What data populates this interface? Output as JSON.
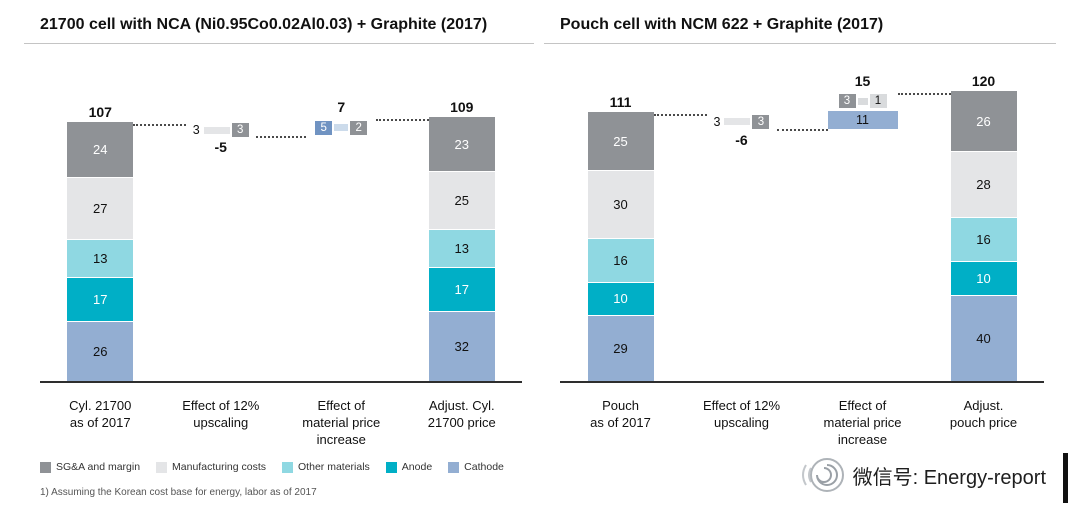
{
  "colors": {
    "sga": "#8f9296",
    "mfg": "#e4e5e7",
    "other": "#8fd8e2",
    "anode": "#00afc6",
    "cathode": "#93aed2",
    "deltablue": "#7093c2",
    "stripblue": "#ccdbeb",
    "lightbox": "#d9dbdd",
    "axis": "#2e2e2e"
  },
  "dark_text_keys": [
    "mfg",
    "other",
    "cathode",
    "lightbox",
    "stripblue"
  ],
  "legend": [
    {
      "key": "sga",
      "label": "SG&A and margin"
    },
    {
      "key": "mfg",
      "label": "Manufacturing costs"
    },
    {
      "key": "other",
      "label": "Other materials"
    },
    {
      "key": "anode",
      "label": "Anode"
    },
    {
      "key": "cathode",
      "label": "Cathode"
    }
  ],
  "footnote": "1) Assuming the Korean cost base for energy, labor as of 2017",
  "footer": {
    "wechat": "微信号: Energy-report"
  },
  "chart_data": [
    {
      "type": "bar",
      "subtype": "stacked-waterfall",
      "title": "21700 cell with NCA (Ni0.95Co0.02Al0.03) + Graphite (2017)",
      "ylim": [
        0,
        130
      ],
      "grid": false,
      "columns": [
        {
          "kind": "stack",
          "label_lines": [
            "Cyl. 21700",
            "as of 2017"
          ],
          "total": 107,
          "segments": [
            {
              "key": "sga",
              "value": 24
            },
            {
              "key": "mfg",
              "value": 27
            },
            {
              "key": "other",
              "value": 13
            },
            {
              "key": "anode",
              "value": 17
            },
            {
              "key": "cathode",
              "value": 26
            }
          ]
        },
        {
          "kind": "delta",
          "label_lines": [
            "Effect of 12%",
            "upscaling"
          ],
          "band": [
            107,
            102
          ],
          "bottom_label": "-5",
          "rows": [
            [
              {
                "t": "3",
                "style": "plain"
              },
              {
                "style": "strip",
                "key": "mfg",
                "w": 26
              },
              {
                "t": "3",
                "style": "box",
                "key": "sga"
              }
            ]
          ]
        },
        {
          "kind": "delta",
          "label_lines": [
            "Effect of",
            "material price",
            "increase"
          ],
          "band": [
            109,
            102
          ],
          "top_label": "7",
          "rows": [
            [
              {
                "t": "5",
                "style": "box",
                "key": "deltablue"
              },
              {
                "style": "strip",
                "key": "stripblue",
                "w": 14
              },
              {
                "t": "2",
                "style": "box",
                "key": "sga"
              }
            ]
          ]
        },
        {
          "kind": "stack",
          "label_lines": [
            "Adjust. Cyl.",
            "21700 price"
          ],
          "total": 109,
          "segments": [
            {
              "key": "sga",
              "value": 23
            },
            {
              "key": "mfg",
              "value": 25
            },
            {
              "key": "other",
              "value": 13
            },
            {
              "key": "anode",
              "value": 17
            },
            {
              "key": "cathode",
              "value": 32
            }
          ]
        }
      ],
      "connectors": [
        {
          "from": 0,
          "to": 1,
          "level": 107
        },
        {
          "from": 1,
          "to": 2,
          "level": 102
        },
        {
          "from": 2,
          "to": 3,
          "level": 109
        }
      ]
    },
    {
      "type": "bar",
      "subtype": "stacked-waterfall",
      "title": "Pouch cell with NCM 622 + Graphite (2017)",
      "ylim": [
        0,
        130
      ],
      "grid": false,
      "columns": [
        {
          "kind": "stack",
          "label_lines": [
            "Pouch",
            "as of 2017"
          ],
          "total": 111,
          "segments": [
            {
              "key": "sga",
              "value": 25
            },
            {
              "key": "mfg",
              "value": 30
            },
            {
              "key": "other",
              "value": 16
            },
            {
              "key": "anode",
              "value": 10
            },
            {
              "key": "cathode",
              "value": 29
            }
          ]
        },
        {
          "kind": "delta",
          "label_lines": [
            "Effect of 12%",
            "upscaling"
          ],
          "band": [
            111,
            105
          ],
          "bottom_label": "-6",
          "rows": [
            [
              {
                "t": "3",
                "style": "plain"
              },
              {
                "style": "strip",
                "key": "mfg",
                "w": 26
              },
              {
                "t": "3",
                "style": "box",
                "key": "sga"
              }
            ]
          ]
        },
        {
          "kind": "delta",
          "label_lines": [
            "Effect of",
            "material price",
            "increase"
          ],
          "band": [
            120,
            105
          ],
          "top_label": "15",
          "rows": [
            [
              {
                "t": "3",
                "style": "box",
                "key": "sga"
              },
              {
                "style": "strip",
                "key": "lightbox",
                "w": 10
              },
              {
                "t": "1",
                "style": "box",
                "key": "lightbox"
              }
            ],
            [
              {
                "t": "11",
                "style": "wide",
                "key": "cathode"
              }
            ]
          ]
        },
        {
          "kind": "stack",
          "label_lines": [
            "Adjust.",
            "pouch price"
          ],
          "total": 120,
          "segments": [
            {
              "key": "sga",
              "value": 26
            },
            {
              "key": "mfg",
              "value": 28
            },
            {
              "key": "other",
              "value": 16
            },
            {
              "key": "anode",
              "value": 10
            },
            {
              "key": "cathode",
              "value": 40
            }
          ]
        }
      ],
      "connectors": [
        {
          "from": 0,
          "to": 1,
          "level": 111
        },
        {
          "from": 1,
          "to": 2,
          "level": 105
        },
        {
          "from": 2,
          "to": 3,
          "level": 120
        }
      ]
    }
  ]
}
